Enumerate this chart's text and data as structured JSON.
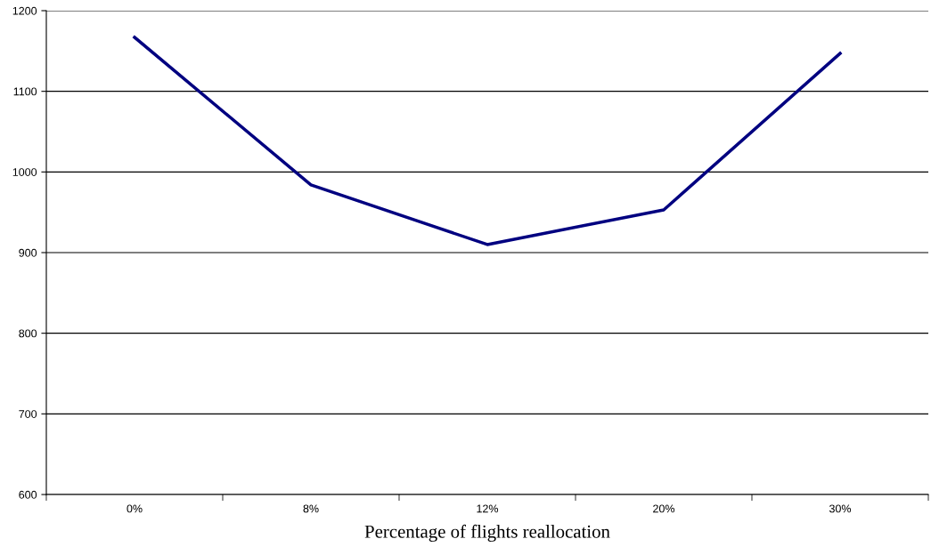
{
  "chart_data": {
    "type": "line",
    "xlabel": "Percentage of flights reallocation",
    "categories": [
      "0%",
      "8%",
      "12%",
      "20%",
      "30%"
    ],
    "series": [
      {
        "color": "#000080",
        "values": [
          1167,
          984,
          910,
          953,
          1147
        ]
      }
    ],
    "ylim": [
      600,
      1200
    ],
    "yticks": [
      600,
      700,
      800,
      900,
      1000,
      1100,
      1200
    ],
    "grid": "y",
    "marker": "none",
    "line_style": "solid"
  }
}
